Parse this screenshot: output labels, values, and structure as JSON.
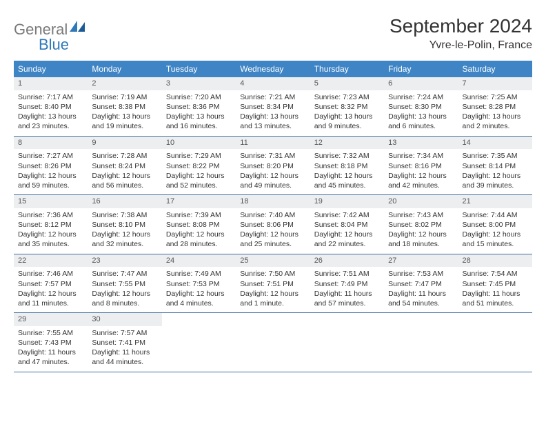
{
  "logo": {
    "text_main": "General",
    "text_blue": "Blue"
  },
  "title": "September 2024",
  "location": "Yvre-le-Polin, France",
  "colors": {
    "header_bg": "#3f85c5",
    "header_text": "#ffffff",
    "daynum_bg": "#eceeef",
    "week_border": "#3f6ea0",
    "logo_gray": "#7a7a7a",
    "logo_blue": "#2f79b9"
  },
  "day_names": [
    "Sunday",
    "Monday",
    "Tuesday",
    "Wednesday",
    "Thursday",
    "Friday",
    "Saturday"
  ],
  "weeks": [
    [
      {
        "n": "1",
        "sr": "Sunrise: 7:17 AM",
        "ss": "Sunset: 8:40 PM",
        "dl1": "Daylight: 13 hours",
        "dl2": "and 23 minutes."
      },
      {
        "n": "2",
        "sr": "Sunrise: 7:19 AM",
        "ss": "Sunset: 8:38 PM",
        "dl1": "Daylight: 13 hours",
        "dl2": "and 19 minutes."
      },
      {
        "n": "3",
        "sr": "Sunrise: 7:20 AM",
        "ss": "Sunset: 8:36 PM",
        "dl1": "Daylight: 13 hours",
        "dl2": "and 16 minutes."
      },
      {
        "n": "4",
        "sr": "Sunrise: 7:21 AM",
        "ss": "Sunset: 8:34 PM",
        "dl1": "Daylight: 13 hours",
        "dl2": "and 13 minutes."
      },
      {
        "n": "5",
        "sr": "Sunrise: 7:23 AM",
        "ss": "Sunset: 8:32 PM",
        "dl1": "Daylight: 13 hours",
        "dl2": "and 9 minutes."
      },
      {
        "n": "6",
        "sr": "Sunrise: 7:24 AM",
        "ss": "Sunset: 8:30 PM",
        "dl1": "Daylight: 13 hours",
        "dl2": "and 6 minutes."
      },
      {
        "n": "7",
        "sr": "Sunrise: 7:25 AM",
        "ss": "Sunset: 8:28 PM",
        "dl1": "Daylight: 13 hours",
        "dl2": "and 2 minutes."
      }
    ],
    [
      {
        "n": "8",
        "sr": "Sunrise: 7:27 AM",
        "ss": "Sunset: 8:26 PM",
        "dl1": "Daylight: 12 hours",
        "dl2": "and 59 minutes."
      },
      {
        "n": "9",
        "sr": "Sunrise: 7:28 AM",
        "ss": "Sunset: 8:24 PM",
        "dl1": "Daylight: 12 hours",
        "dl2": "and 56 minutes."
      },
      {
        "n": "10",
        "sr": "Sunrise: 7:29 AM",
        "ss": "Sunset: 8:22 PM",
        "dl1": "Daylight: 12 hours",
        "dl2": "and 52 minutes."
      },
      {
        "n": "11",
        "sr": "Sunrise: 7:31 AM",
        "ss": "Sunset: 8:20 PM",
        "dl1": "Daylight: 12 hours",
        "dl2": "and 49 minutes."
      },
      {
        "n": "12",
        "sr": "Sunrise: 7:32 AM",
        "ss": "Sunset: 8:18 PM",
        "dl1": "Daylight: 12 hours",
        "dl2": "and 45 minutes."
      },
      {
        "n": "13",
        "sr": "Sunrise: 7:34 AM",
        "ss": "Sunset: 8:16 PM",
        "dl1": "Daylight: 12 hours",
        "dl2": "and 42 minutes."
      },
      {
        "n": "14",
        "sr": "Sunrise: 7:35 AM",
        "ss": "Sunset: 8:14 PM",
        "dl1": "Daylight: 12 hours",
        "dl2": "and 39 minutes."
      }
    ],
    [
      {
        "n": "15",
        "sr": "Sunrise: 7:36 AM",
        "ss": "Sunset: 8:12 PM",
        "dl1": "Daylight: 12 hours",
        "dl2": "and 35 minutes."
      },
      {
        "n": "16",
        "sr": "Sunrise: 7:38 AM",
        "ss": "Sunset: 8:10 PM",
        "dl1": "Daylight: 12 hours",
        "dl2": "and 32 minutes."
      },
      {
        "n": "17",
        "sr": "Sunrise: 7:39 AM",
        "ss": "Sunset: 8:08 PM",
        "dl1": "Daylight: 12 hours",
        "dl2": "and 28 minutes."
      },
      {
        "n": "18",
        "sr": "Sunrise: 7:40 AM",
        "ss": "Sunset: 8:06 PM",
        "dl1": "Daylight: 12 hours",
        "dl2": "and 25 minutes."
      },
      {
        "n": "19",
        "sr": "Sunrise: 7:42 AM",
        "ss": "Sunset: 8:04 PM",
        "dl1": "Daylight: 12 hours",
        "dl2": "and 22 minutes."
      },
      {
        "n": "20",
        "sr": "Sunrise: 7:43 AM",
        "ss": "Sunset: 8:02 PM",
        "dl1": "Daylight: 12 hours",
        "dl2": "and 18 minutes."
      },
      {
        "n": "21",
        "sr": "Sunrise: 7:44 AM",
        "ss": "Sunset: 8:00 PM",
        "dl1": "Daylight: 12 hours",
        "dl2": "and 15 minutes."
      }
    ],
    [
      {
        "n": "22",
        "sr": "Sunrise: 7:46 AM",
        "ss": "Sunset: 7:57 PM",
        "dl1": "Daylight: 12 hours",
        "dl2": "and 11 minutes."
      },
      {
        "n": "23",
        "sr": "Sunrise: 7:47 AM",
        "ss": "Sunset: 7:55 PM",
        "dl1": "Daylight: 12 hours",
        "dl2": "and 8 minutes."
      },
      {
        "n": "24",
        "sr": "Sunrise: 7:49 AM",
        "ss": "Sunset: 7:53 PM",
        "dl1": "Daylight: 12 hours",
        "dl2": "and 4 minutes."
      },
      {
        "n": "25",
        "sr": "Sunrise: 7:50 AM",
        "ss": "Sunset: 7:51 PM",
        "dl1": "Daylight: 12 hours",
        "dl2": "and 1 minute."
      },
      {
        "n": "26",
        "sr": "Sunrise: 7:51 AM",
        "ss": "Sunset: 7:49 PM",
        "dl1": "Daylight: 11 hours",
        "dl2": "and 57 minutes."
      },
      {
        "n": "27",
        "sr": "Sunrise: 7:53 AM",
        "ss": "Sunset: 7:47 PM",
        "dl1": "Daylight: 11 hours",
        "dl2": "and 54 minutes."
      },
      {
        "n": "28",
        "sr": "Sunrise: 7:54 AM",
        "ss": "Sunset: 7:45 PM",
        "dl1": "Daylight: 11 hours",
        "dl2": "and 51 minutes."
      }
    ],
    [
      {
        "n": "29",
        "sr": "Sunrise: 7:55 AM",
        "ss": "Sunset: 7:43 PM",
        "dl1": "Daylight: 11 hours",
        "dl2": "and 47 minutes."
      },
      {
        "n": "30",
        "sr": "Sunrise: 7:57 AM",
        "ss": "Sunset: 7:41 PM",
        "dl1": "Daylight: 11 hours",
        "dl2": "and 44 minutes."
      },
      null,
      null,
      null,
      null,
      null
    ]
  ]
}
